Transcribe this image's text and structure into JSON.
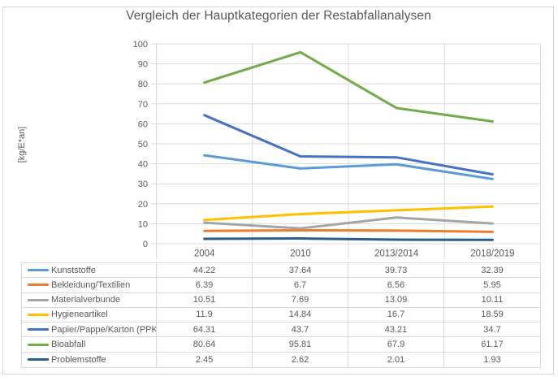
{
  "chart_data": {
    "type": "line",
    "title": "Vergleich der Hauptkategorien der Restabfallanalysen",
    "ylabel": "[kg/E*an]",
    "xlabel": "",
    "categories": [
      "2004",
      "2010",
      "2013/2014",
      "2018/2019"
    ],
    "series": [
      {
        "name": "Kunststoffe",
        "color": "#5B9BD5",
        "values": [
          44.22,
          37.64,
          39.73,
          32.39
        ]
      },
      {
        "name": "Bekleidung/Textilien",
        "color": "#ED7D31",
        "values": [
          6.39,
          6.7,
          6.56,
          5.95
        ]
      },
      {
        "name": "Materialverbunde",
        "color": "#A5A5A5",
        "values": [
          10.51,
          7.69,
          13.09,
          10.11
        ]
      },
      {
        "name": "Hygieneartikel",
        "color": "#FFC000",
        "values": [
          11.9,
          14.84,
          16.7,
          18.59
        ]
      },
      {
        "name": "Papier/Pappe/Karton (PPK)",
        "color": "#4472C4",
        "values": [
          64.31,
          43.7,
          43.21,
          34.7
        ]
      },
      {
        "name": "Bioabfall",
        "color": "#70AD47",
        "values": [
          80.64,
          95.81,
          67.9,
          61.17
        ]
      },
      {
        "name": "Problemstoffe",
        "color": "#255E91",
        "values": [
          2.45,
          2.62,
          2.01,
          1.93
        ]
      }
    ],
    "ylim": [
      0,
      100
    ],
    "yticks": [
      0,
      10,
      20,
      30,
      40,
      50,
      60,
      70,
      80,
      90,
      100
    ],
    "grid": true,
    "legend_position": "data-table-below-plot",
    "colors": {
      "gridline": "#D9D9D9",
      "text": "#595959",
      "frame_border": "#D6D6D6"
    }
  }
}
